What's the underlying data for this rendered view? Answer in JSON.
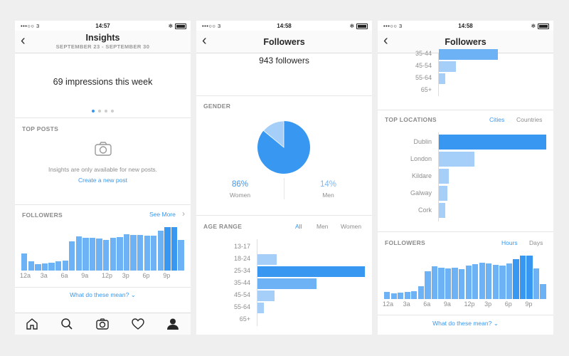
{
  "status": {
    "carrier": "•••○○ 3",
    "times": [
      "14:57",
      "14:58",
      "14:58"
    ]
  },
  "screen1": {
    "title": "Insights",
    "subtitle": "SEPTEMBER 23 - SEPTEMBER 30",
    "impressions": "69 impressions this week",
    "top_posts_label": "TOP POSTS",
    "empty_text": "Insights are only available for new posts.",
    "create_link": "Create a new post",
    "followers_label": "FOLLOWERS",
    "see_more": "See More",
    "chevron": "›",
    "x_ticks": [
      "12a",
      "3a",
      "6a",
      "9a",
      "12p",
      "3p",
      "6p",
      "9p"
    ],
    "what_link": "What do these mean?",
    "hourly_values": [
      22,
      12,
      8,
      9,
      10,
      12,
      13,
      38,
      45,
      43,
      43,
      42,
      40,
      43,
      44,
      48,
      47,
      47,
      46,
      46,
      52,
      57,
      57,
      40
    ]
  },
  "screen2": {
    "title": "Followers",
    "followers_count": "943 followers",
    "gender_label": "GENDER",
    "women_pct": "86%",
    "women_label": "Women",
    "men_pct": "14%",
    "men_label": "Men",
    "women_value": 86,
    "men_value": 14,
    "age_label": "AGE RANGE",
    "filter_all": "All",
    "filter_men": "Men",
    "filter_women": "Women",
    "age_ranges": [
      "13-17",
      "18-24",
      "25-34",
      "35-44",
      "45-54",
      "55-64",
      "65+"
    ],
    "age_values": [
      0,
      18,
      100,
      55,
      16,
      6,
      0
    ],
    "colors": {
      "primary": "#3897f0",
      "light": "#a5cff8",
      "mid": "#6cb2f4"
    }
  },
  "screen3": {
    "title": "Followers",
    "age_ranges_partial": [
      "35-44",
      "45-54",
      "55-64",
      "65+"
    ],
    "age_values_partial": [
      55,
      16,
      6,
      0
    ],
    "locations_label": "TOP LOCATIONS",
    "tab_cities": "Cities",
    "tab_countries": "Countries",
    "locations": [
      "Dublin",
      "London",
      "Kildare",
      "Galway",
      "Cork"
    ],
    "location_values": [
      100,
      33,
      9,
      8,
      6
    ],
    "followers_label": "FOLLOWERS",
    "tab_hours": "Hours",
    "tab_days": "Days",
    "x_ticks": [
      "12a",
      "3a",
      "6a",
      "9a",
      "12p",
      "3p",
      "6p",
      "9p"
    ],
    "hourly_values": [
      10,
      8,
      9,
      10,
      11,
      18,
      40,
      47,
      45,
      44,
      45,
      43,
      48,
      50,
      52,
      51,
      49,
      48,
      51,
      57,
      62,
      62,
      44,
      21
    ],
    "what_link": "What do these mean?"
  }
}
